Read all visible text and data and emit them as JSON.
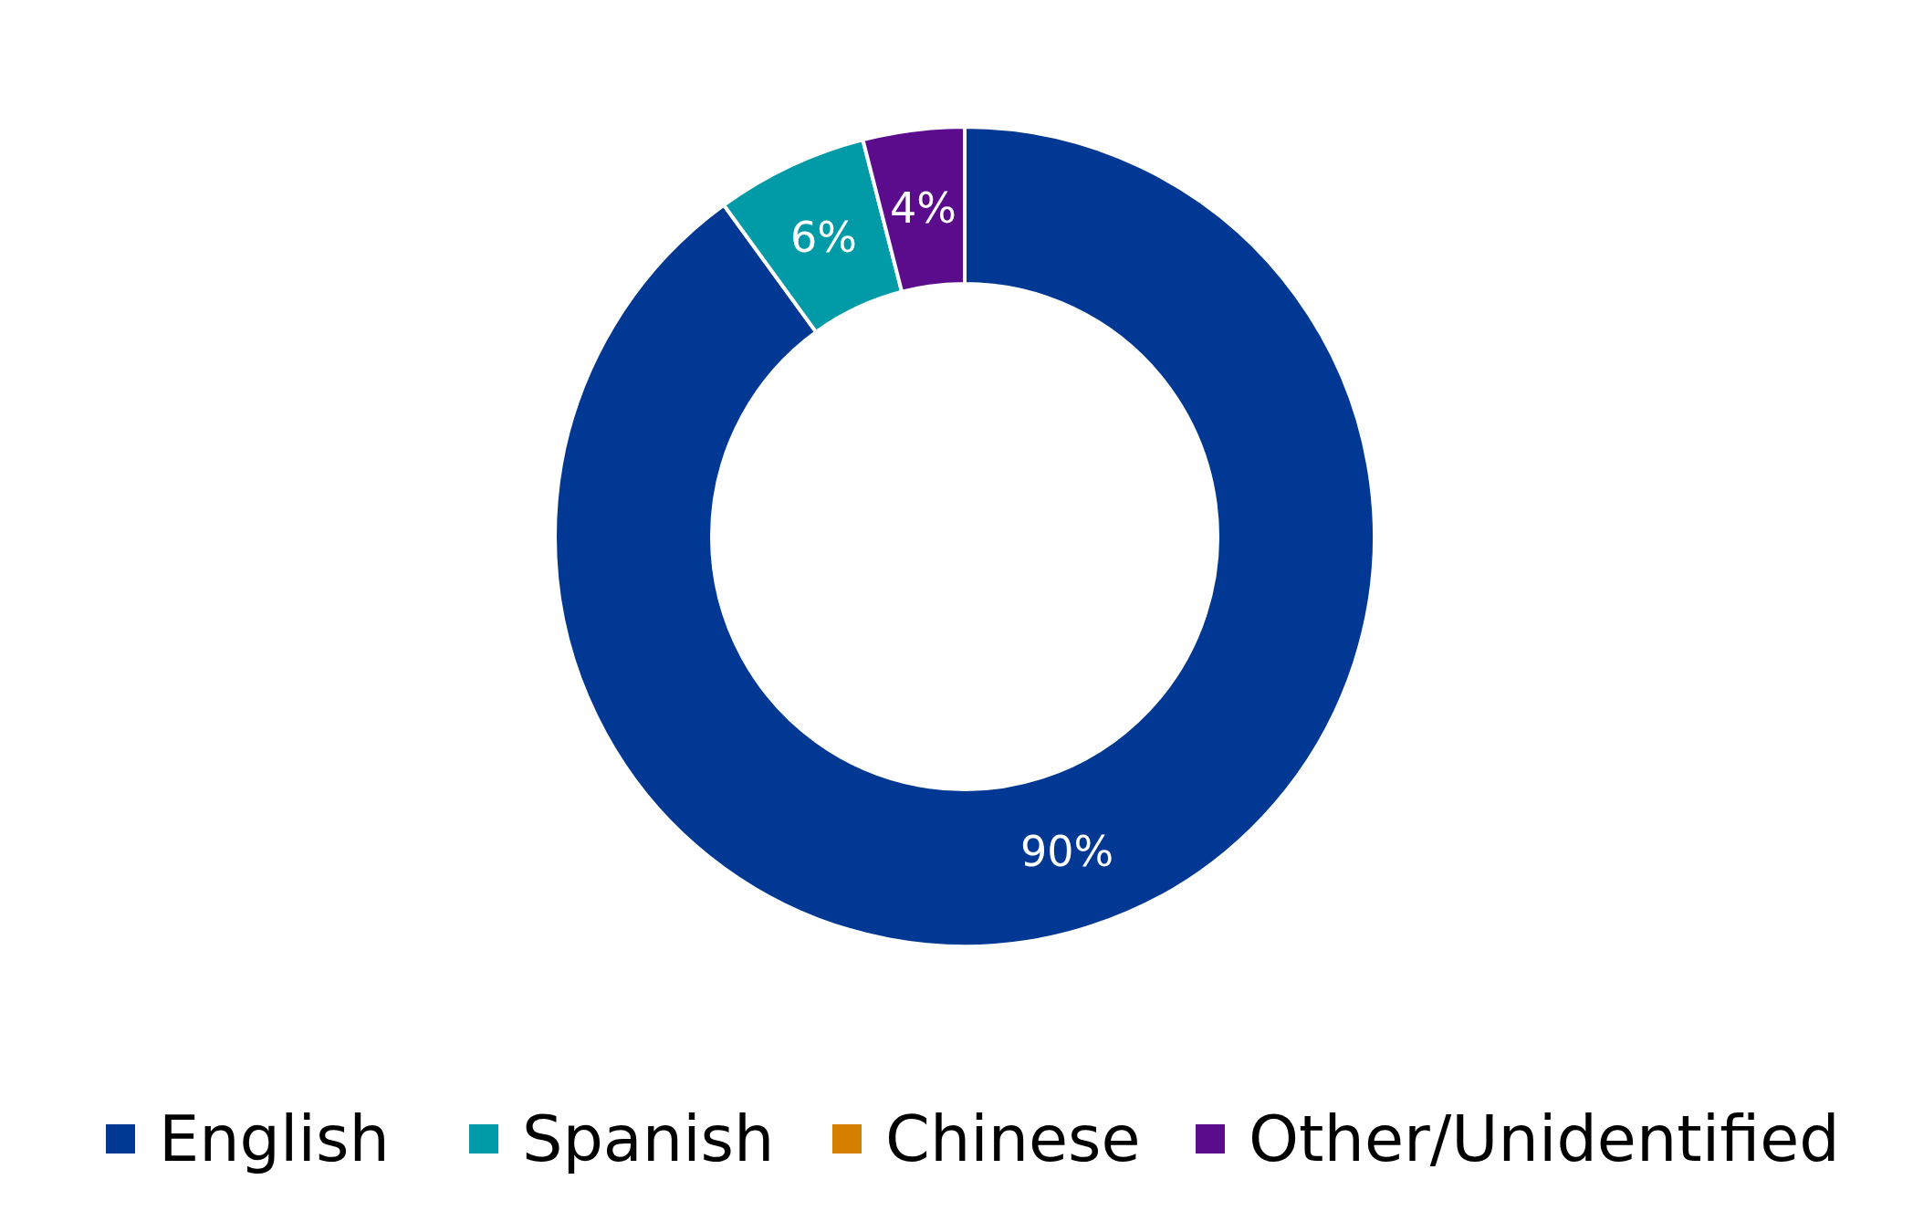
{
  "chart_data": {
    "type": "donut",
    "categories": [
      "English",
      "Spanish",
      "Chinese",
      "Other/Unidentified"
    ],
    "values": [
      90,
      6,
      0,
      4
    ],
    "colors": [
      "#003893",
      "#009ba6",
      "#d47f00",
      "#5b0c8c"
    ],
    "value_labels": [
      "90%",
      "6%",
      null,
      "4%"
    ],
    "legend": "bottom"
  }
}
